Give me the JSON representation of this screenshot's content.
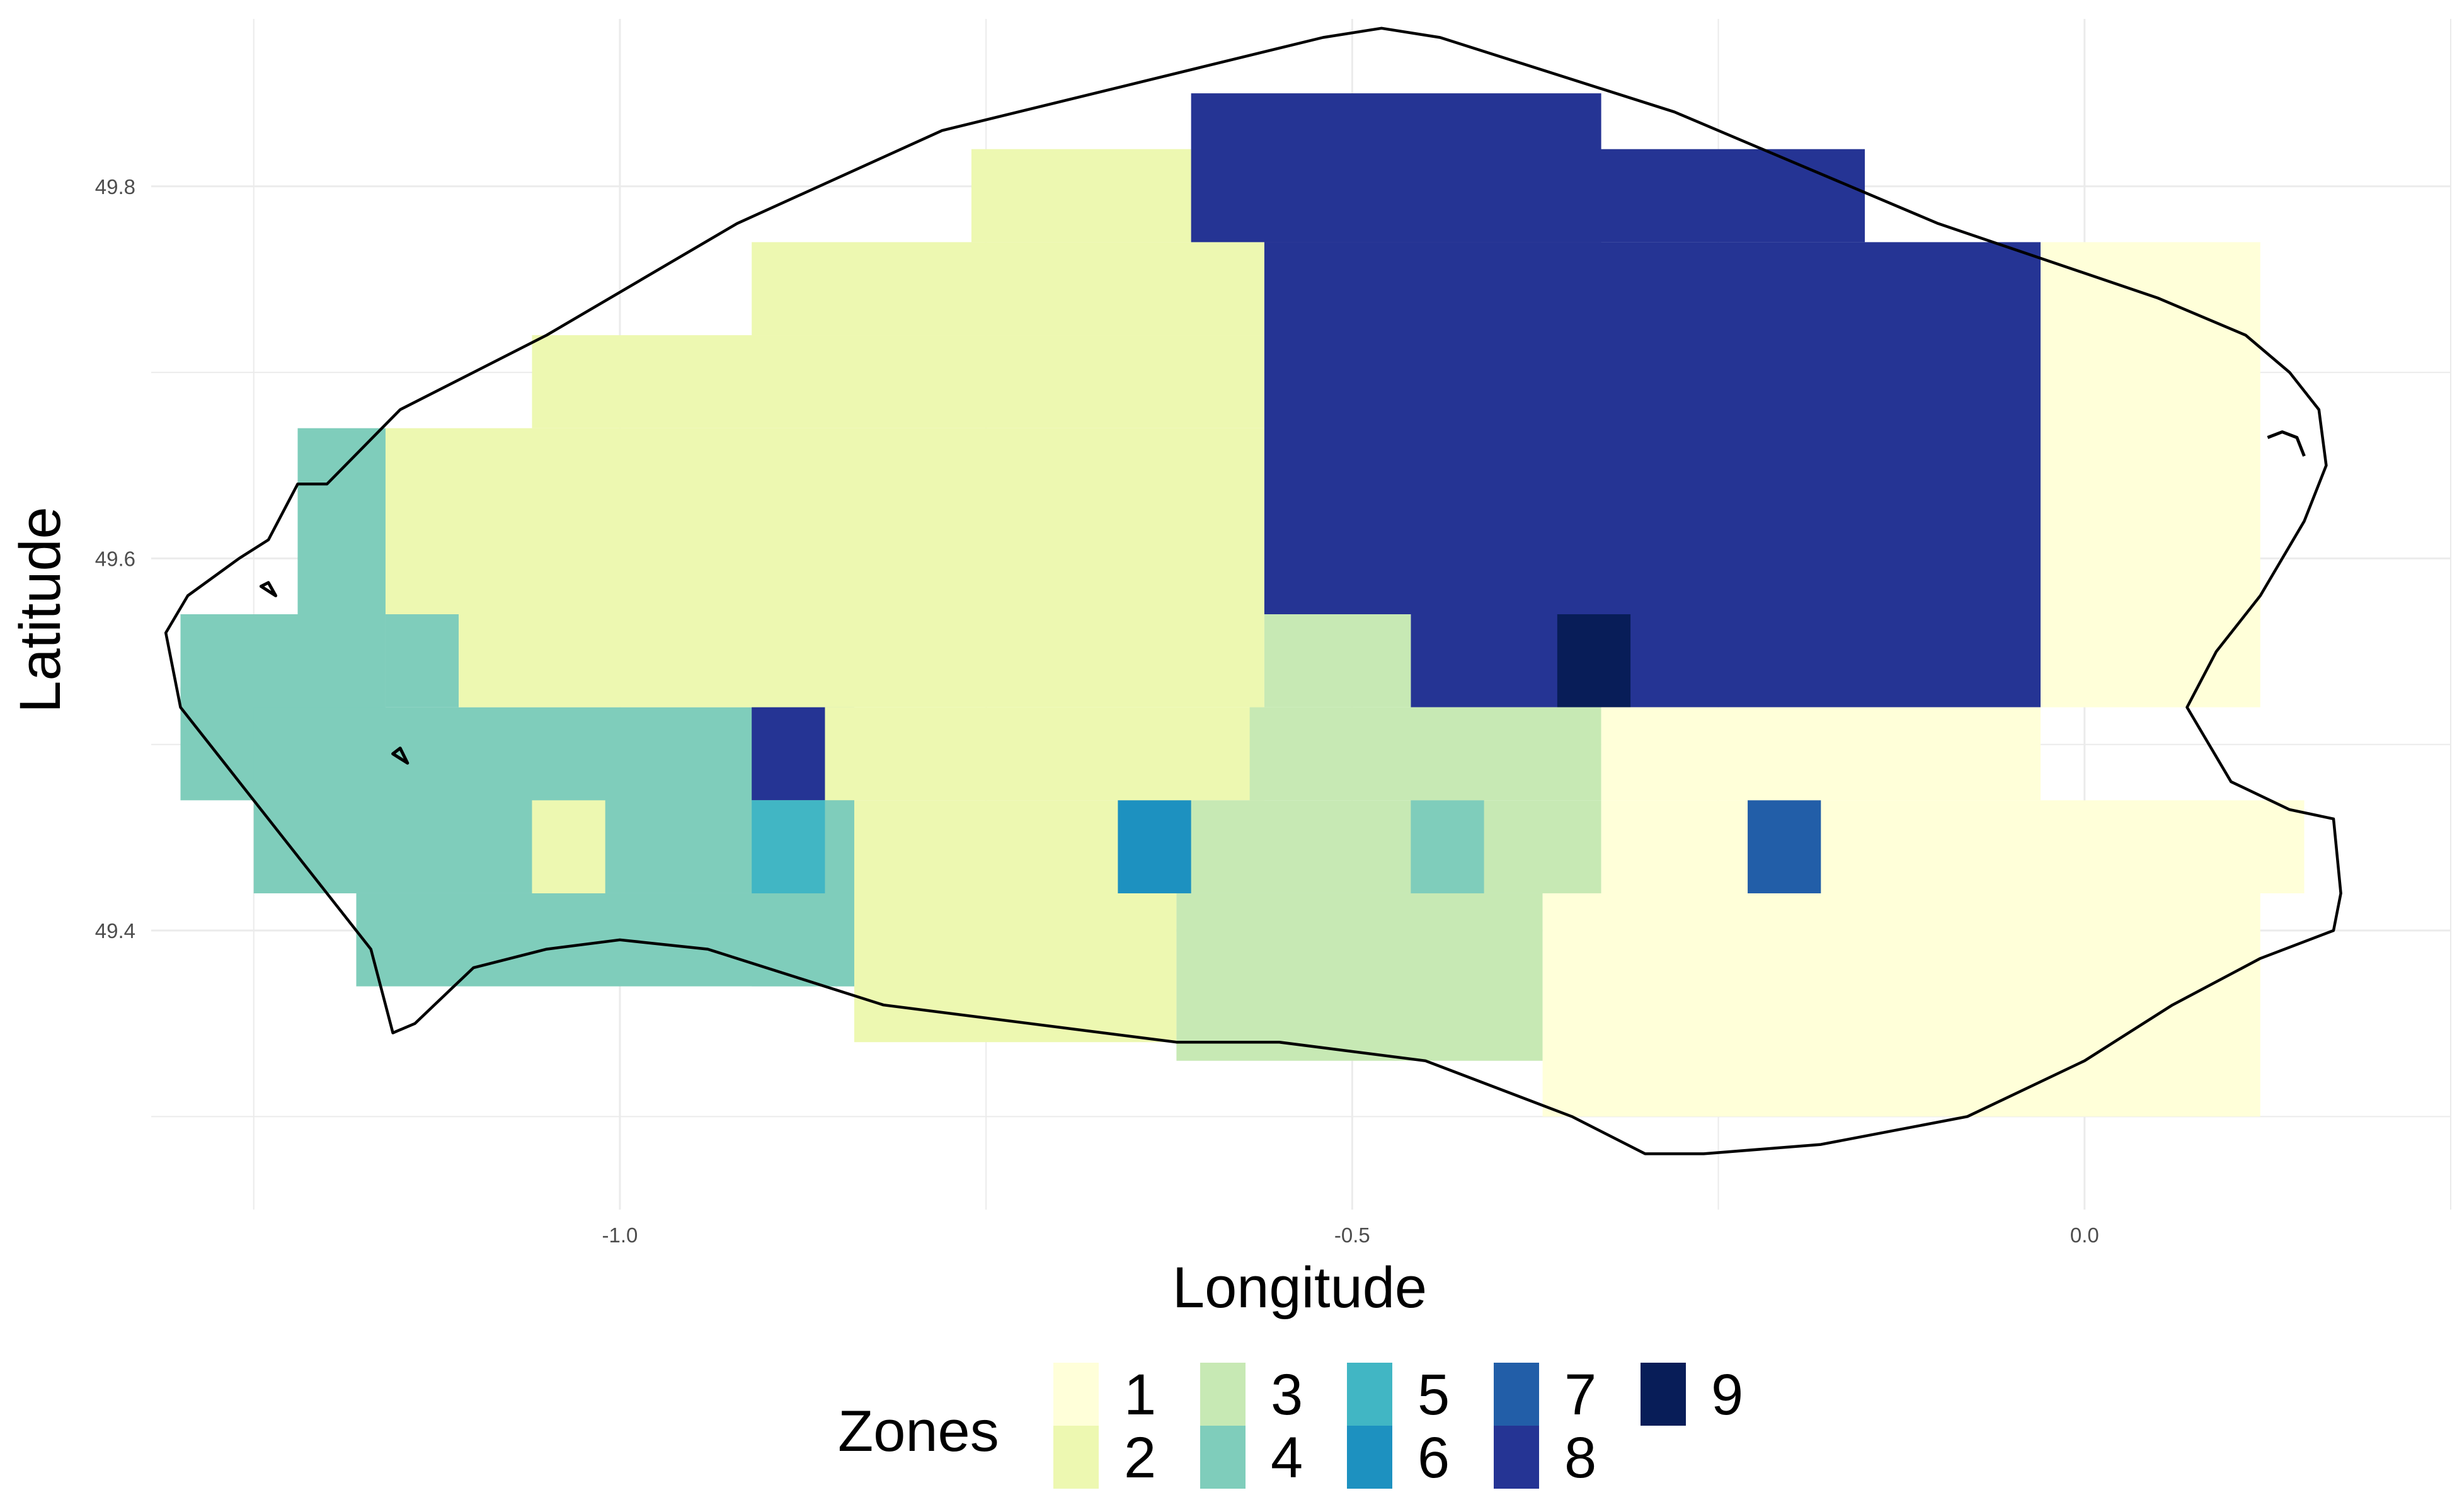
{
  "figure": {
    "xlabel": "Longitude",
    "ylabel": "Latitude"
  },
  "axes": {
    "xlim": [
      -1.32,
      0.25
    ],
    "ylim": [
      49.25,
      49.89
    ],
    "x_major_ticks": [
      -1.0,
      -0.5,
      0.0
    ],
    "x_tick_labels": [
      "-1.0",
      "-0.5",
      "0.0"
    ],
    "x_minor_ticks": [
      -1.25,
      -0.75,
      -0.25,
      0.25
    ],
    "y_major_ticks": [
      49.4,
      49.6,
      49.8
    ],
    "y_tick_labels": [
      "49.4",
      "49.6",
      "49.8"
    ],
    "y_minor_ticks": [
      49.3,
      49.5,
      49.7
    ],
    "grid": true,
    "background": "#ffffff",
    "grid_color": "#ebebeb"
  },
  "legend": {
    "title": "Zones",
    "placement": "bottom",
    "items": [
      {
        "zone": 1,
        "label": "1",
        "color": "#ffffd9"
      },
      {
        "zone": 2,
        "label": "2",
        "color": "#edf8b1"
      },
      {
        "zone": 3,
        "label": "3",
        "color": "#c7e9b4"
      },
      {
        "zone": 4,
        "label": "4",
        "color": "#7fcdbb"
      },
      {
        "zone": 5,
        "label": "5",
        "color": "#41b6c4"
      },
      {
        "zone": 6,
        "label": "6",
        "color": "#1d91c0"
      },
      {
        "zone": 7,
        "label": "7",
        "color": "#225ea8"
      },
      {
        "zone": 8,
        "label": "8",
        "color": "#253494"
      },
      {
        "zone": 9,
        "label": "9",
        "color": "#081d58"
      }
    ]
  },
  "grid_cells": {
    "cell_size_deg": [
      0.05,
      0.05
    ],
    "rects": [
      {
        "zone": 4,
        "lon": [
          -1.3,
          -1.16
        ],
        "lat": [
          49.47,
          49.57
        ]
      },
      {
        "zone": 4,
        "lon": [
          -1.25,
          -0.84
        ],
        "lat": [
          49.42,
          49.52
        ]
      },
      {
        "zone": 4,
        "lon": [
          -1.22,
          -1.16
        ],
        "lat": [
          49.57,
          49.67
        ]
      },
      {
        "zone": 4,
        "lon": [
          -1.16,
          -1.11
        ],
        "lat": [
          49.52,
          49.57
        ]
      },
      {
        "zone": 4,
        "lon": [
          -1.18,
          -0.84
        ],
        "lat": [
          49.37,
          49.42
        ]
      },
      {
        "zone": 2,
        "lon": [
          -1.16,
          -0.56
        ],
        "lat": [
          49.57,
          49.67
        ]
      },
      {
        "zone": 2,
        "lon": [
          -1.11,
          -0.56
        ],
        "lat": [
          49.52,
          49.57
        ]
      },
      {
        "zone": 2,
        "lon": [
          -1.06,
          -0.56
        ],
        "lat": [
          49.67,
          49.72
        ]
      },
      {
        "zone": 2,
        "lon": [
          -0.91,
          -0.56
        ],
        "lat": [
          49.72,
          49.77
        ]
      },
      {
        "zone": 2,
        "lon": [
          -0.76,
          -0.61
        ],
        "lat": [
          49.77,
          49.82
        ]
      },
      {
        "zone": 2,
        "lon": [
          -0.86,
          -0.56
        ],
        "lat": [
          49.47,
          49.52
        ]
      },
      {
        "zone": 2,
        "lon": [
          -0.84,
          -0.62
        ],
        "lat": [
          49.34,
          49.47
        ]
      },
      {
        "zone": 2,
        "lon": [
          -1.06,
          -1.01
        ],
        "lat": [
          49.42,
          49.47
        ]
      },
      {
        "zone": 8,
        "lon": [
          -0.56,
          -0.03
        ],
        "lat": [
          49.57,
          49.77
        ]
      },
      {
        "zone": 8,
        "lon": [
          -0.61,
          -0.33
        ],
        "lat": [
          49.77,
          49.85
        ]
      },
      {
        "zone": 8,
        "lon": [
          -0.56,
          -0.15
        ],
        "lat": [
          49.77,
          49.82
        ]
      },
      {
        "zone": 8,
        "lon": [
          -0.46,
          -0.03
        ],
        "lat": [
          49.52,
          49.57
        ]
      },
      {
        "zone": 8,
        "lon": [
          -0.91,
          -0.86
        ],
        "lat": [
          49.47,
          49.52
        ]
      },
      {
        "zone": 9,
        "lon": [
          -0.36,
          -0.31
        ],
        "lat": [
          49.52,
          49.57
        ]
      },
      {
        "zone": 3,
        "lon": [
          -0.56,
          -0.46
        ],
        "lat": [
          49.52,
          49.57
        ]
      },
      {
        "zone": 3,
        "lon": [
          -0.57,
          -0.33
        ],
        "lat": [
          49.47,
          49.52
        ]
      },
      {
        "zone": 3,
        "lon": [
          -0.62,
          -0.33
        ],
        "lat": [
          49.42,
          49.47
        ]
      },
      {
        "zone": 3,
        "lon": [
          -0.62,
          -0.37
        ],
        "lat": [
          49.33,
          49.42
        ]
      },
      {
        "zone": 1,
        "lon": [
          -0.33,
          -0.03
        ],
        "lat": [
          49.47,
          49.52
        ]
      },
      {
        "zone": 1,
        "lon": [
          -0.33,
          0.15
        ],
        "lat": [
          49.42,
          49.47
        ]
      },
      {
        "zone": 1,
        "lon": [
          -0.37,
          0.12
        ],
        "lat": [
          49.3,
          49.42
        ]
      },
      {
        "zone": 1,
        "lon": [
          -0.03,
          0.12
        ],
        "lat": [
          49.52,
          49.77
        ]
      },
      {
        "zone": 4,
        "lon": [
          -0.91,
          -0.84
        ],
        "lat": [
          49.37,
          49.47
        ]
      },
      {
        "zone": 5,
        "lon": [
          -0.91,
          -0.86
        ],
        "lat": [
          49.42,
          49.47
        ]
      },
      {
        "zone": 6,
        "lon": [
          -0.66,
          -0.61
        ],
        "lat": [
          49.42,
          49.47
        ]
      },
      {
        "zone": 4,
        "lon": [
          -0.46,
          -0.41
        ],
        "lat": [
          49.42,
          49.47
        ]
      },
      {
        "zone": 7,
        "lon": [
          -0.23,
          -0.18
        ],
        "lat": [
          49.42,
          49.47
        ]
      }
    ]
  },
  "outline": {
    "stroke": "#000000",
    "main": [
      [
        -1.2,
        49.64
      ],
      [
        -1.15,
        49.68
      ],
      [
        -1.05,
        49.72
      ],
      [
        -0.92,
        49.78
      ],
      [
        -0.78,
        49.83
      ],
      [
        -0.52,
        49.88
      ],
      [
        -0.48,
        49.885
      ],
      [
        -0.44,
        49.88
      ],
      [
        -0.28,
        49.84
      ],
      [
        -0.1,
        49.78
      ],
      [
        0.05,
        49.74
      ],
      [
        0.11,
        49.72
      ],
      [
        0.14,
        49.7
      ],
      [
        0.16,
        49.68
      ],
      [
        0.165,
        49.65
      ],
      [
        0.15,
        49.62
      ],
      [
        0.12,
        49.58
      ],
      [
        0.09,
        49.55
      ],
      [
        0.07,
        49.52
      ],
      [
        0.1,
        49.48
      ],
      [
        0.14,
        49.465
      ],
      [
        0.17,
        49.46
      ],
      [
        0.175,
        49.42
      ],
      [
        0.17,
        49.4
      ],
      [
        0.12,
        49.385
      ],
      [
        0.06,
        49.36
      ],
      [
        0.0,
        49.33
      ],
      [
        -0.08,
        49.3
      ],
      [
        -0.18,
        49.285
      ],
      [
        -0.26,
        49.28
      ],
      [
        -0.3,
        49.28
      ],
      [
        -0.35,
        49.3
      ],
      [
        -0.45,
        49.33
      ],
      [
        -0.55,
        49.34
      ],
      [
        -0.62,
        49.34
      ],
      [
        -0.72,
        49.35
      ],
      [
        -0.82,
        49.36
      ],
      [
        -0.88,
        49.375
      ],
      [
        -0.94,
        49.39
      ],
      [
        -1.0,
        49.395
      ],
      [
        -1.05,
        49.39
      ],
      [
        -1.1,
        49.38
      ],
      [
        -1.12,
        49.365
      ],
      [
        -1.14,
        49.35
      ],
      [
        -1.155,
        49.345
      ],
      [
        -1.16,
        49.36
      ],
      [
        -1.17,
        49.39
      ],
      [
        -1.2,
        49.42
      ],
      [
        -1.23,
        49.45
      ],
      [
        -1.27,
        49.49
      ],
      [
        -1.3,
        49.52
      ],
      [
        -1.31,
        49.56
      ],
      [
        -1.295,
        49.58
      ],
      [
        -1.26,
        49.6
      ],
      [
        -1.24,
        49.61
      ],
      [
        -1.22,
        49.64
      ]
    ],
    "islands": [
      [
        [
          -1.245,
          49.585
        ],
        [
          -1.235,
          49.58
        ],
        [
          -1.24,
          49.587
        ]
      ],
      [
        [
          -1.155,
          49.495
        ],
        [
          -1.145,
          49.49
        ],
        [
          -1.15,
          49.498
        ]
      ],
      [
        [
          0.125,
          49.665
        ],
        [
          0.135,
          49.668
        ],
        [
          0.145,
          49.665
        ],
        [
          0.15,
          49.655
        ]
      ]
    ]
  }
}
